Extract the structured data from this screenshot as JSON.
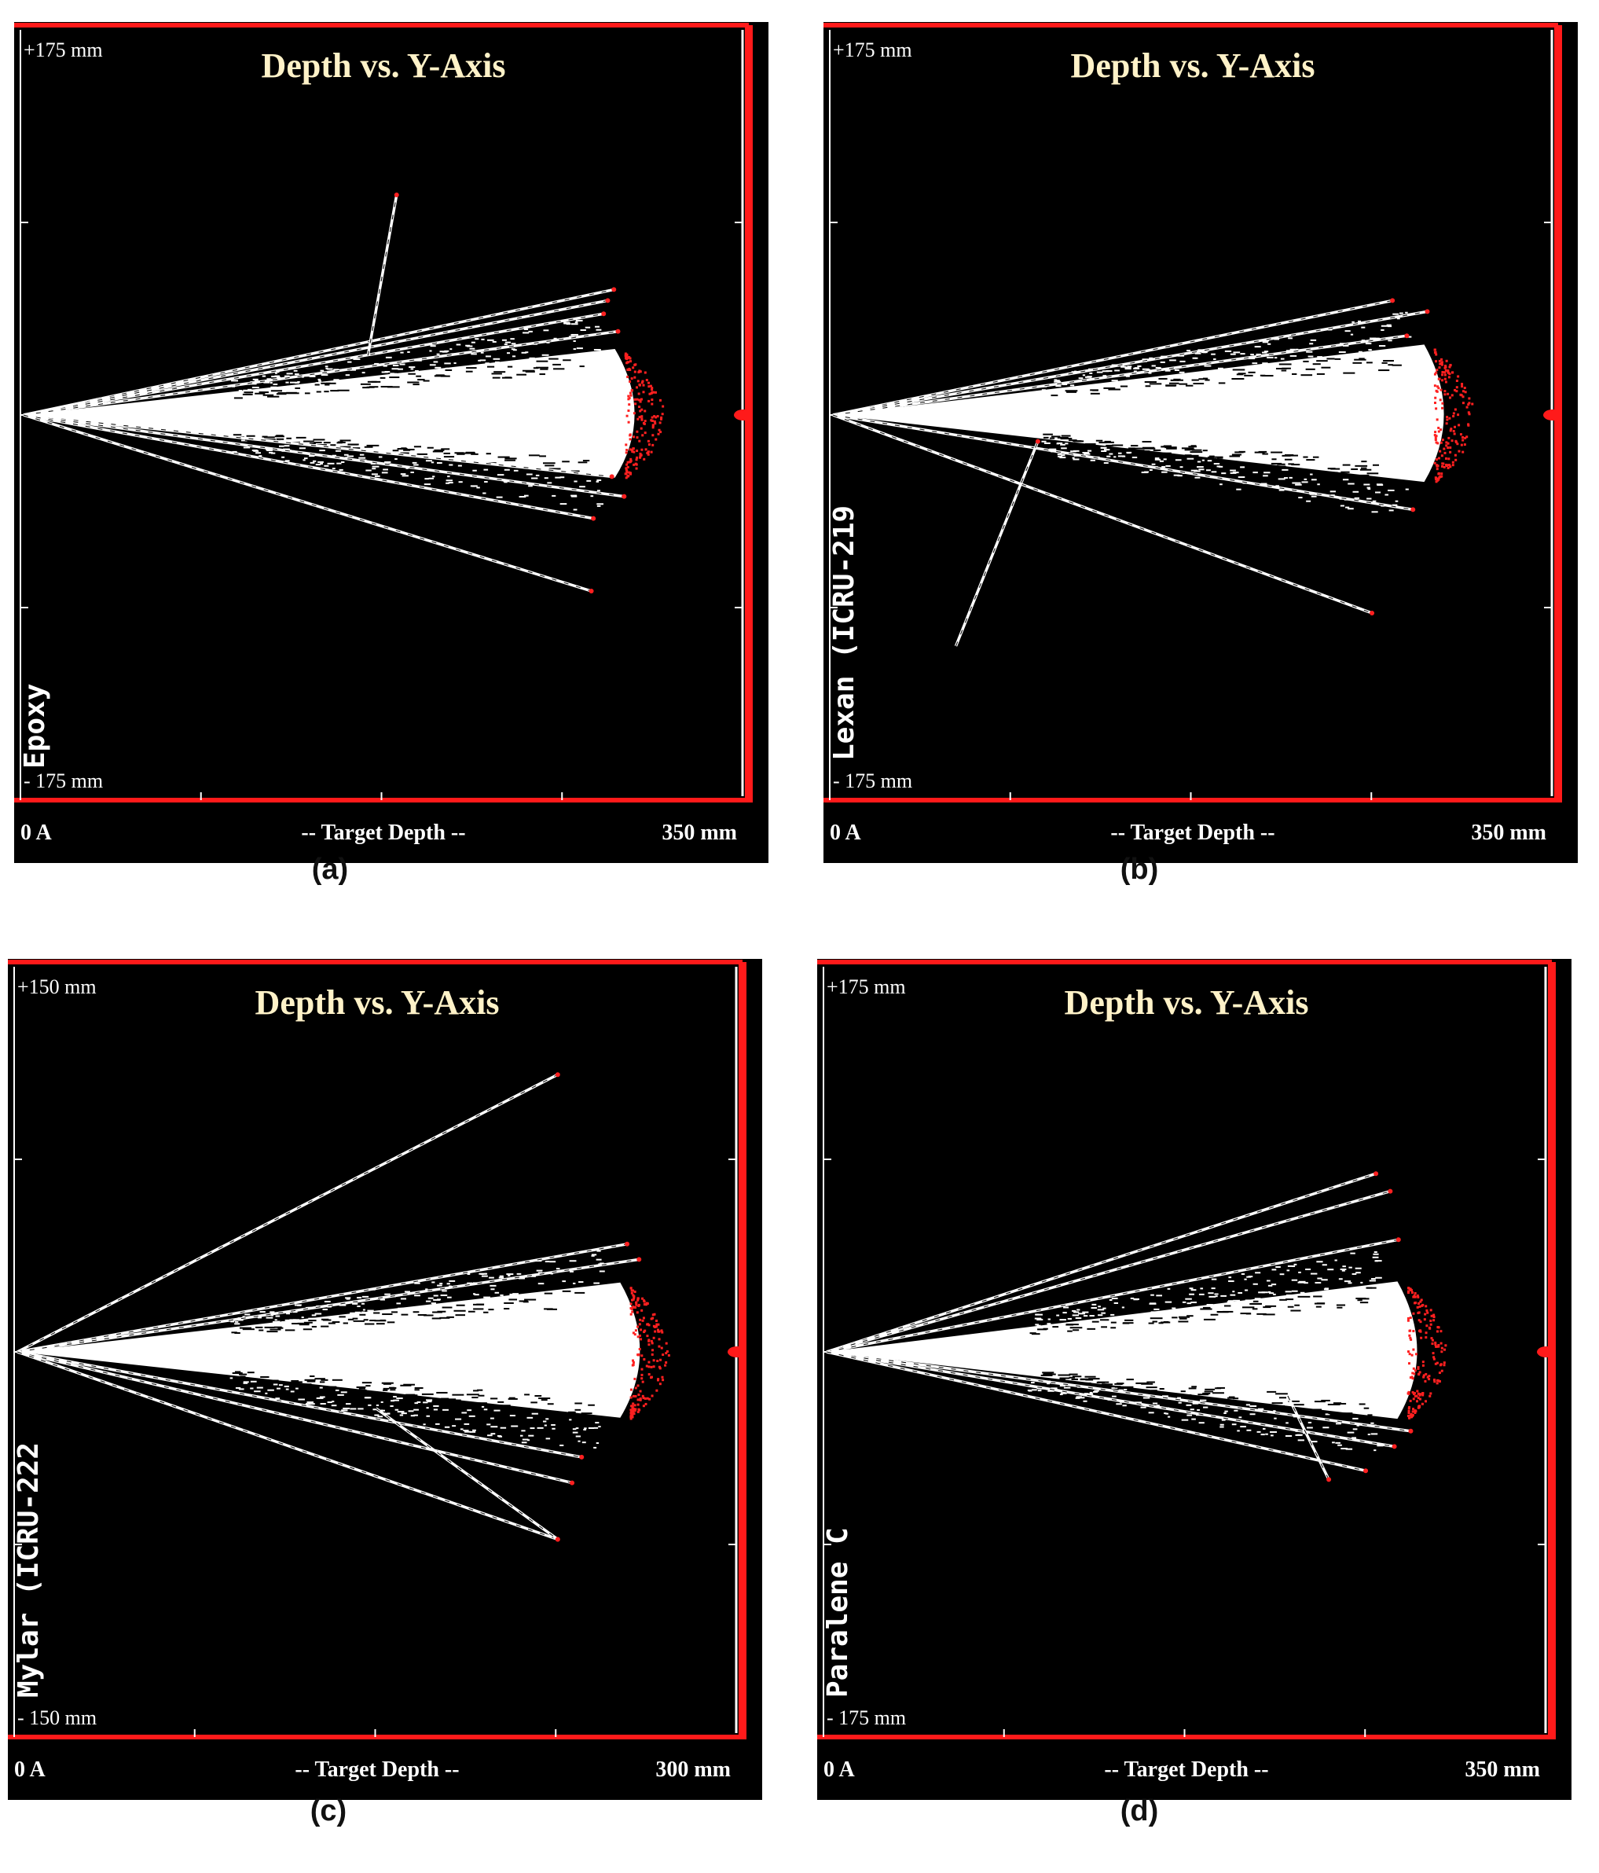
{
  "figure": {
    "panels": [
      {
        "id": "a",
        "caption": "(a)",
        "title": "Depth vs. Y-Axis",
        "y_top_label": "+175 mm",
        "y_bottom_label": "- 175 mm",
        "x_left_label": "0 A",
        "x_center_label": "-- Target Depth --",
        "x_right_label": "350 mm",
        "material_label": "Epoxy"
      },
      {
        "id": "b",
        "caption": "(b)",
        "title": "Depth vs. Y-Axis",
        "y_top_label": "+175 mm",
        "y_bottom_label": "- 175 mm",
        "x_left_label": "0 A",
        "x_center_label": "-- Target Depth --",
        "x_right_label": "350 mm",
        "material_label": "Lexan (ICRU-219"
      },
      {
        "id": "c",
        "caption": "(c)",
        "title": "Depth vs. Y-Axis",
        "y_top_label": "+150 mm",
        "y_bottom_label": "- 150 mm",
        "x_left_label": "0 A",
        "x_center_label": "-- Target Depth --",
        "x_right_label": "300 mm",
        "material_label": "Mylar (ICRU-222"
      },
      {
        "id": "d",
        "caption": "(d)",
        "title": "Depth vs. Y-Axis",
        "y_top_label": "+175 mm",
        "y_bottom_label": "- 175 mm",
        "x_left_label": "0 A",
        "x_center_label": "-- Target Depth --",
        "x_right_label": "350 mm",
        "material_label": "Paralene C"
      }
    ]
  },
  "chart_data": [
    {
      "type": "scatter",
      "panel": "a",
      "title": "Depth vs. Y-Axis",
      "xlabel": "-- Target Depth --",
      "xlim": [
        0,
        350
      ],
      "ylim": [
        -175,
        175
      ],
      "x_unit": "mm",
      "y_unit": "mm",
      "series": [
        {
          "name": "Epoxy"
        }
      ],
      "plume": {
        "x_end": 300,
        "y_half": 30
      },
      "tracks": [
        {
          "x": [
            0,
            288
          ],
          "y": [
            0,
            57
          ]
        },
        {
          "x": [
            0,
            285
          ],
          "y": [
            0,
            52
          ]
        },
        {
          "x": [
            0,
            283
          ],
          "y": [
            0,
            46
          ]
        },
        {
          "x": [
            0,
            290
          ],
          "y": [
            0,
            38
          ]
        },
        {
          "x": [
            0,
            287
          ],
          "y": [
            0,
            -28
          ]
        },
        {
          "x": [
            0,
            293
          ],
          "y": [
            0,
            -37
          ]
        },
        {
          "x": [
            0,
            278
          ],
          "y": [
            0,
            -47
          ]
        },
        {
          "x": [
            0,
            277
          ],
          "y": [
            0,
            -80
          ]
        },
        {
          "x": [
            168,
            182
          ],
          "y": [
            27,
            100
          ]
        }
      ],
      "grid": false,
      "legend": "none"
    },
    {
      "type": "scatter",
      "panel": "b",
      "title": "Depth vs. Y-Axis",
      "xlabel": "-- Target Depth --",
      "xlim": [
        0,
        350
      ],
      "ylim": [
        -175,
        175
      ],
      "x_unit": "mm",
      "y_unit": "mm",
      "series": [
        {
          "name": "Lexan (ICRU-219"
        }
      ],
      "plume": {
        "x_end": 300,
        "y_half": 32
      },
      "tracks": [
        {
          "x": [
            0,
            273
          ],
          "y": [
            0,
            52
          ]
        },
        {
          "x": [
            0,
            290
          ],
          "y": [
            0,
            47
          ]
        },
        {
          "x": [
            0,
            280
          ],
          "y": [
            0,
            36
          ]
        },
        {
          "x": [
            0,
            283
          ],
          "y": [
            0,
            -43
          ]
        },
        {
          "x": [
            0,
            263
          ],
          "y": [
            0,
            -90
          ]
        },
        {
          "x": [
            60,
            100
          ],
          "y": [
            -105,
            -12
          ]
        }
      ],
      "grid": false,
      "legend": "none"
    },
    {
      "type": "scatter",
      "panel": "c",
      "title": "Depth vs. Y-Axis",
      "xlabel": "-- Target Depth --",
      "xlim": [
        0,
        300
      ],
      "ylim": [
        -150,
        150
      ],
      "x_unit": "mm",
      "y_unit": "mm",
      "series": [
        {
          "name": "Mylar (ICRU-222"
        }
      ],
      "plume": {
        "x_end": 262,
        "y_half": 27
      },
      "tracks": [
        {
          "x": [
            0,
            226
          ],
          "y": [
            0,
            108
          ]
        },
        {
          "x": [
            0,
            255
          ],
          "y": [
            0,
            42
          ]
        },
        {
          "x": [
            0,
            260
          ],
          "y": [
            0,
            36
          ]
        },
        {
          "x": [
            0,
            236
          ],
          "y": [
            0,
            -41
          ]
        },
        {
          "x": [
            0,
            232
          ],
          "y": [
            0,
            -51
          ]
        },
        {
          "x": [
            0,
            226
          ],
          "y": [
            0,
            -73
          ]
        },
        {
          "x": [
            150,
            226
          ],
          "y": [
            -22,
            -73
          ]
        }
      ],
      "grid": false,
      "legend": "none"
    },
    {
      "type": "scatter",
      "panel": "d",
      "title": "Depth vs. Y-Axis",
      "xlabel": "-- Target Depth --",
      "xlim": [
        0,
        350
      ],
      "ylim": [
        -175,
        175
      ],
      "x_unit": "mm",
      "y_unit": "mm",
      "series": [
        {
          "name": "Paralene C"
        }
      ],
      "plume": {
        "x_end": 290,
        "y_half": 32
      },
      "tracks": [
        {
          "x": [
            0,
            268
          ],
          "y": [
            0,
            81
          ]
        },
        {
          "x": [
            0,
            275
          ],
          "y": [
            0,
            73
          ]
        },
        {
          "x": [
            0,
            279
          ],
          "y": [
            0,
            51
          ]
        },
        {
          "x": [
            0,
            285
          ],
          "y": [
            0,
            -36
          ]
        },
        {
          "x": [
            0,
            277
          ],
          "y": [
            0,
            -43
          ]
        },
        {
          "x": [
            0,
            263
          ],
          "y": [
            0,
            -54
          ]
        },
        {
          "x": [
            225,
            245
          ],
          "y": [
            -20,
            -58
          ]
        }
      ],
      "grid": false,
      "legend": "none"
    }
  ],
  "colors": {
    "background": "#000000",
    "track": "#ffffff",
    "endpoint": "#ff2020",
    "frame": "#ff1a1a",
    "title": "#fff2c8"
  }
}
